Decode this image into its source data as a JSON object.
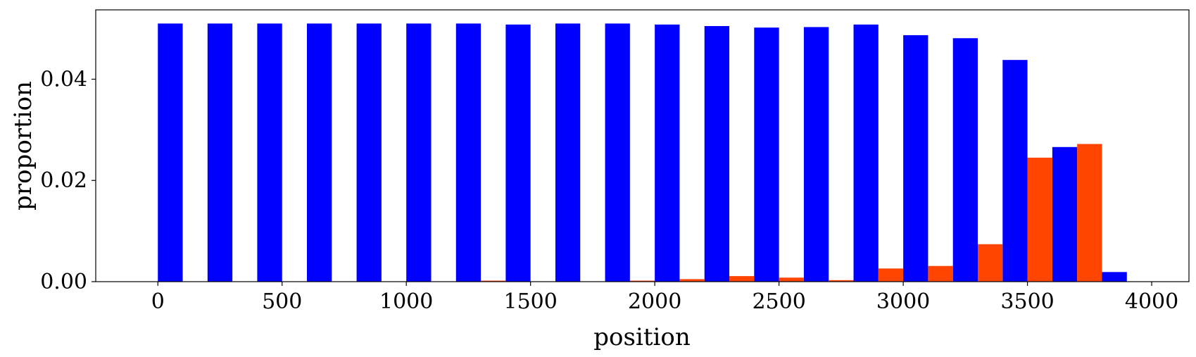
{
  "chart_data": {
    "type": "bar",
    "xlabel": "position",
    "ylabel": "proportion",
    "xlim": [
      -250,
      4150
    ],
    "ylim": [
      0,
      0.0537
    ],
    "xticks": [
      0,
      500,
      1000,
      1500,
      2000,
      2500,
      3000,
      3500,
      4000
    ],
    "xtick_labels": [
      "0",
      "500",
      "1000",
      "1500",
      "2000",
      "2500",
      "3000",
      "3500",
      "4000"
    ],
    "yticks": [
      0.0,
      0.02,
      0.04
    ],
    "ytick_labels": [
      "0.00",
      "0.02",
      "0.04"
    ],
    "grid": false,
    "bin_width": 200,
    "bin_starts": [
      0,
      200,
      400,
      600,
      800,
      1000,
      1200,
      1400,
      1600,
      1800,
      2000,
      2200,
      2400,
      2600,
      2800,
      3000,
      3200,
      3400,
      3600,
      3800
    ],
    "series": [
      {
        "color": "#0000ff",
        "values": [
          0.051,
          0.051,
          0.051,
          0.051,
          0.051,
          0.051,
          0.051,
          0.0508,
          0.051,
          0.051,
          0.0508,
          0.0505,
          0.0502,
          0.0503,
          0.0508,
          0.0487,
          0.0481,
          0.0438,
          0.0266,
          0.0019
        ]
      },
      {
        "color": "#ff4500",
        "values": [
          0.0,
          0.0,
          0.0,
          0.0,
          0.0,
          0.0,
          0.0002,
          0.0,
          0.0,
          0.0002,
          0.0005,
          0.0011,
          0.0008,
          0.0003,
          0.0026,
          0.0031,
          0.0074,
          0.0245,
          0.0272,
          0.0
        ]
      }
    ]
  }
}
